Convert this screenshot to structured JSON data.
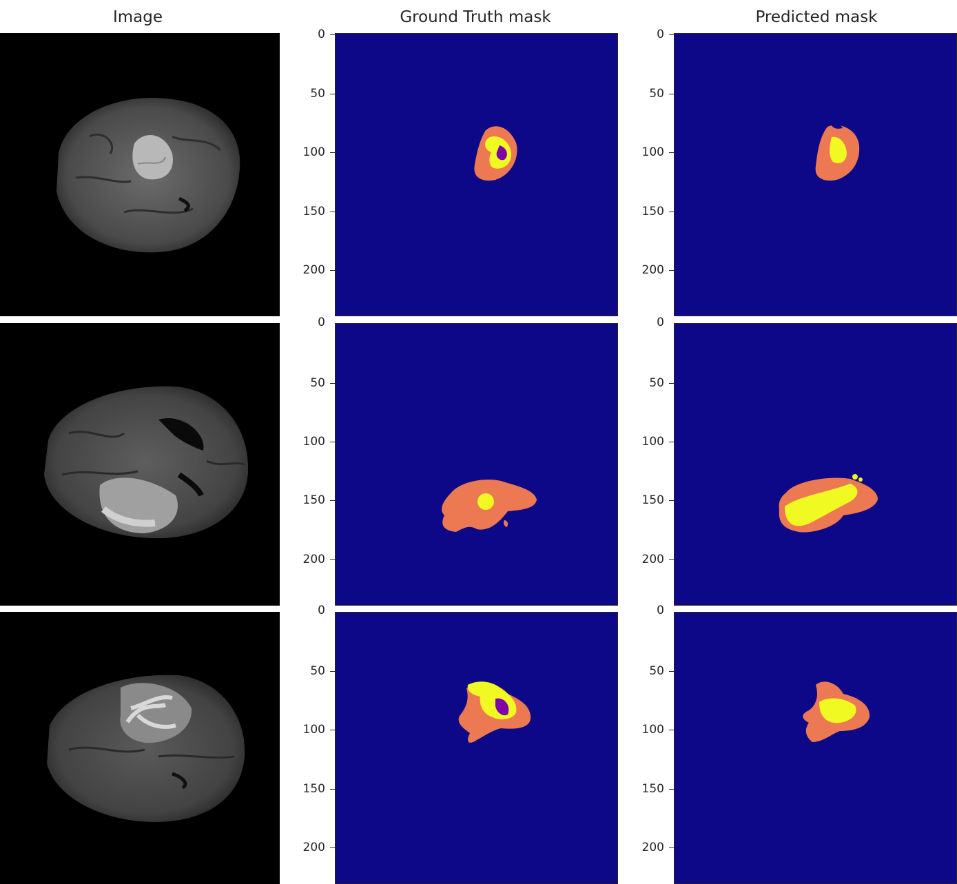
{
  "titles": {
    "image": "Image",
    "ground_truth": "Ground Truth mask",
    "predicted": "Predicted mask"
  },
  "y_ticks": [
    "0",
    "50",
    "100",
    "150",
    "200"
  ],
  "colors": {
    "background_mask": "#0d0887",
    "edema": "#ed7953",
    "enhancing": "#f0f921",
    "necrotic": "#7e03a8",
    "mri_background": "#000000",
    "axes": "#262626"
  },
  "rows": [
    {
      "row": 1
    },
    {
      "row": 2
    },
    {
      "row": 3
    }
  ]
}
